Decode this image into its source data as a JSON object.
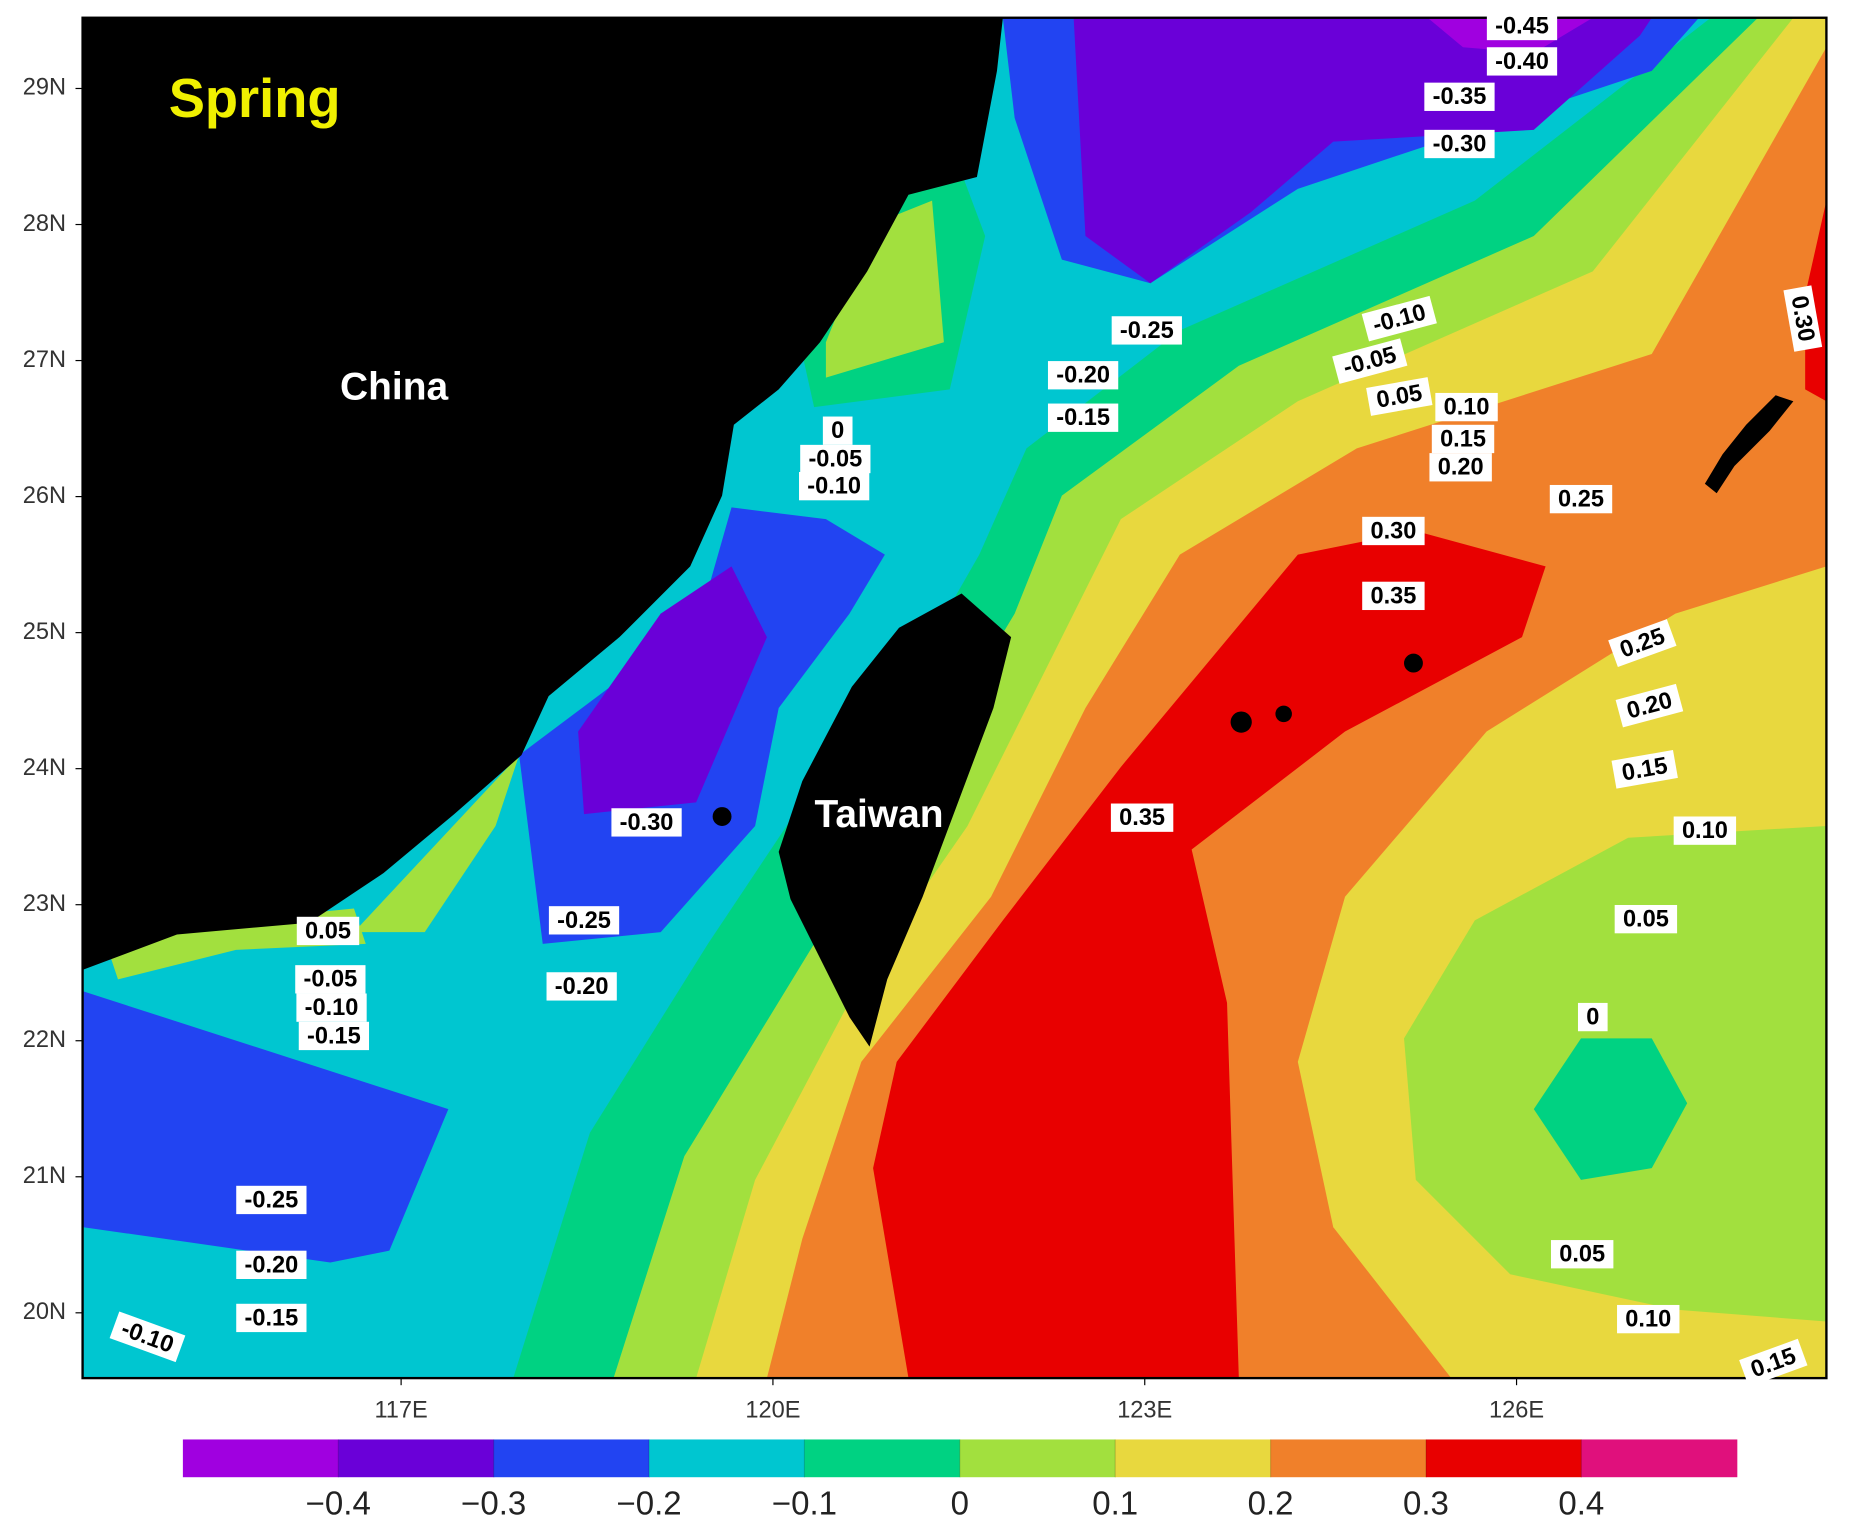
{
  "title": "Spring",
  "places": [
    "China",
    "Taiwan"
  ],
  "map": {
    "xlim": [
      114.43,
      128.5
    ],
    "ylim": [
      19.52,
      29.52
    ],
    "xticks": [
      {
        "value": 117,
        "label": "117E"
      },
      {
        "value": 120,
        "label": "120E"
      },
      {
        "value": 123,
        "label": "123E"
      },
      {
        "value": 126,
        "label": "126E"
      }
    ],
    "yticks": [
      {
        "value": 20,
        "label": "20N"
      },
      {
        "value": 21,
        "label": "21N"
      },
      {
        "value": 22,
        "label": "22N"
      },
      {
        "value": 23,
        "label": "23N"
      },
      {
        "value": 24,
        "label": "24N"
      },
      {
        "value": 25,
        "label": "25N"
      },
      {
        "value": 26,
        "label": "26N"
      },
      {
        "value": 27,
        "label": "27N"
      },
      {
        "value": 28,
        "label": "28N"
      },
      {
        "value": 29,
        "label": "29N"
      }
    ]
  },
  "contour_labels": [
    "-0.45",
    "-0.40",
    "-0.35",
    "-0.30",
    "-0.25",
    "-0.20",
    "-0.15",
    "-0.10",
    "-0.05",
    "0.05",
    "0.10",
    "0.15",
    "0.20",
    "0.25",
    "0.30",
    "0.30",
    "0.35",
    "0.35",
    "0",
    "-0.05",
    "-0.10",
    "-0.30",
    "-0.25",
    "-0.20",
    "0.05",
    "-0.05",
    "-0.10",
    "-0.15",
    "0.25",
    "0.20",
    "0.15",
    "0.10",
    "0.05",
    "0",
    "0.05",
    "0.10",
    "0.15",
    "-0.25",
    "-0.20",
    "-0.15",
    "-0.10"
  ],
  "colorbar": {
    "lim": [
      -0.5,
      0.5
    ],
    "colors": [
      "#a000e0",
      "#6a00d8",
      "#2244f2",
      "#00c6d0",
      "#00d282",
      "#a2e03e",
      "#e8d83e",
      "#f0802a",
      "#e80000",
      "#e0107c"
    ],
    "ticks": [
      {
        "value": -0.4,
        "label": "−0.4"
      },
      {
        "value": -0.3,
        "label": "−0.3"
      },
      {
        "value": -0.2,
        "label": "−0.2"
      },
      {
        "value": -0.1,
        "label": "−0.1"
      },
      0,
      0.1,
      0.2,
      0.3,
      0.4
    ]
  }
}
